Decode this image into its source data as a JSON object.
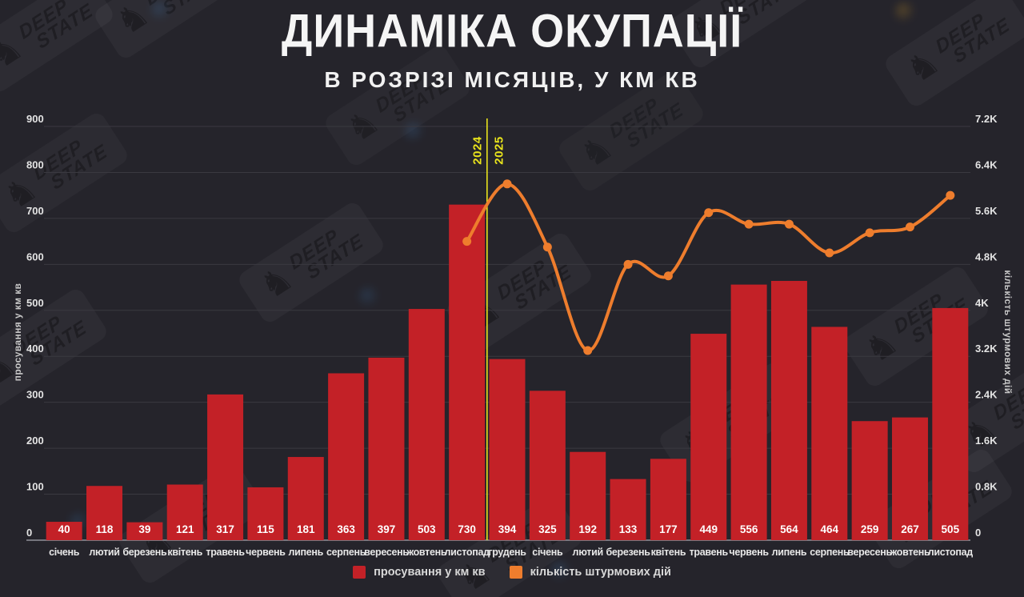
{
  "watermark": {
    "line1": "DEEP",
    "line2": "STATE",
    "knight_glyph": "♞"
  },
  "colors": {
    "background": "#25242b",
    "bar": "#c32127",
    "line": "#ee7d2d",
    "divider": "#e9e41c",
    "grid": "#3a3940",
    "axis_line": "#75757d",
    "tick_text": "#e4e4e4",
    "month_text": "#e8e8e8",
    "value_text": "#ffffff"
  },
  "chart_data": {
    "type": "combo",
    "title": "ДИНАМІКА ОКУПАЦІЇ",
    "subtitle": "В РОЗРІЗІ МІСЯЦІВ, У КМ КВ",
    "categories": [
      "січень",
      "лютий",
      "березень",
      "квітень",
      "травень",
      "червень",
      "липень",
      "серпень",
      "вересень",
      "жовтень",
      "листопад",
      "грудень",
      "січень",
      "лютий",
      "березень",
      "квітень",
      "травень",
      "червень",
      "липень",
      "серпень",
      "вересень",
      "жовтень",
      "листопад"
    ],
    "series": [
      {
        "name": "просування у км кв",
        "type": "bar",
        "axis": "left",
        "color": "#c32127",
        "values": [
          40,
          118,
          39,
          121,
          317,
          115,
          181,
          363,
          397,
          503,
          730,
          394,
          325,
          192,
          133,
          177,
          449,
          556,
          564,
          464,
          259,
          267,
          505
        ]
      },
      {
        "name": "кількість штурмових дій",
        "type": "line",
        "axis": "right",
        "color": "#ee7d2d",
        "values": [
          null,
          null,
          null,
          null,
          null,
          null,
          null,
          null,
          null,
          null,
          5200,
          6200,
          5100,
          3300,
          4800,
          4600,
          5700,
          5500,
          5500,
          5000,
          5350,
          5450,
          6000
        ]
      }
    ],
    "left_axis": {
      "label": "просування у км кв",
      "range": [
        0,
        900
      ],
      "tick_step": 100,
      "ticks": [
        "0",
        "100",
        "200",
        "300",
        "400",
        "500",
        "600",
        "700",
        "800",
        "900"
      ]
    },
    "right_axis": {
      "label": "кількість штурмових дій",
      "range": [
        0,
        7200
      ],
      "ticks": [
        "0",
        "0.8K",
        "1.6K",
        "2.4K",
        "3.2K",
        "4K",
        "4.8K",
        "5.6K",
        "6.4K",
        "7.2K"
      ]
    },
    "year_divider": {
      "after_category_index": 10,
      "left_label": "2024",
      "right_label": "2025",
      "color": "#e9e41c"
    },
    "grid": true,
    "bar_value_labels": true,
    "legend_position": "bottom"
  }
}
